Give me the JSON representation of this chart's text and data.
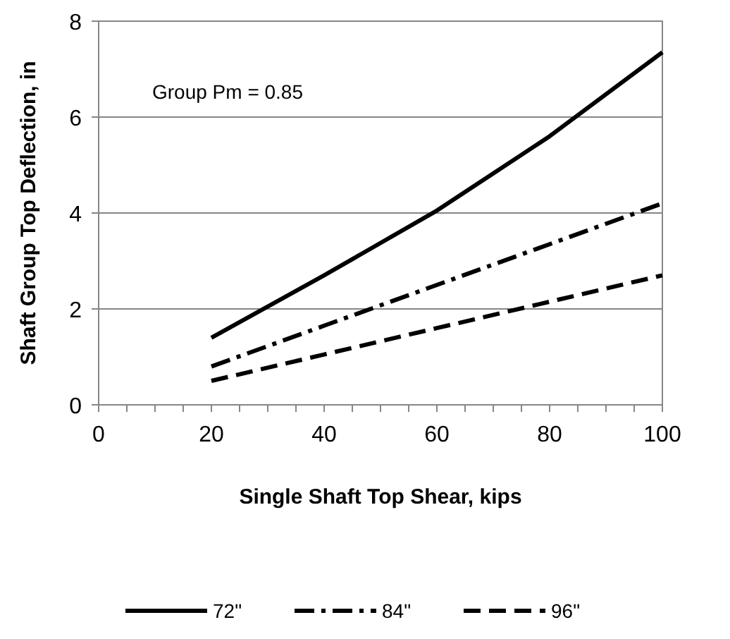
{
  "chart_data": {
    "type": "line",
    "xlabel": "Single Shaft Top Shear, kips",
    "ylabel": "Shaft Group Top Deflection, in",
    "annotations": [
      "Group Pm = 0.85"
    ],
    "x": [
      20,
      40,
      60,
      80,
      100
    ],
    "series": [
      {
        "name": "72\"",
        "color": "#000000",
        "line_style": "solid",
        "values": [
          1.4,
          2.7,
          4.05,
          5.6,
          7.35
        ]
      },
      {
        "name": "84\"",
        "color": "#000000",
        "line_style": "dashdot",
        "values": [
          0.8,
          1.65,
          2.5,
          3.35,
          4.2
        ]
      },
      {
        "name": "96\"",
        "color": "#000000",
        "line_style": "dashed",
        "values": [
          0.5,
          1.05,
          1.6,
          2.15,
          2.7
        ]
      }
    ],
    "xlim": [
      0,
      100
    ],
    "xticks": [
      0,
      {
        "value": 5,
        "label": null
      },
      {
        "value": 10,
        "label": null
      },
      {
        "value": 15,
        "label": null
      },
      20,
      {
        "value": 25,
        "label": null
      },
      {
        "value": 30,
        "label": null
      },
      {
        "value": 35,
        "label": null
      },
      40,
      {
        "value": 45,
        "label": null
      },
      {
        "value": 50,
        "label": null
      },
      {
        "value": 55,
        "label": null
      },
      60,
      {
        "value": 65,
        "label": null
      },
      {
        "value": 70,
        "label": null
      },
      {
        "value": 75,
        "label": null
      },
      80,
      {
        "value": 85,
        "label": null
      },
      {
        "value": 90,
        "label": null
      },
      {
        "value": 95,
        "label": null
      },
      100
    ],
    "ylim": [
      0,
      8
    ],
    "yticks": [
      0,
      2,
      4,
      6,
      8
    ],
    "grid": "y",
    "legend": "bottom",
    "marker": "none"
  }
}
